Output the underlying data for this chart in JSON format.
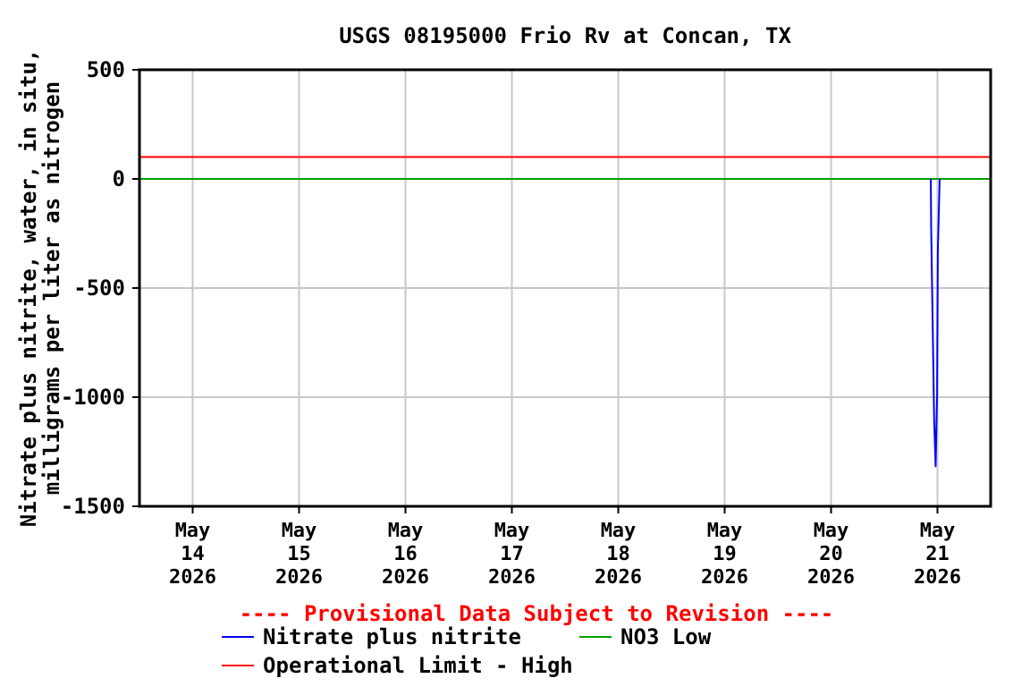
{
  "chart_data": {
    "type": "line",
    "title": "USGS 08195000 Frio Rv at Concan, TX",
    "ylabel": "Nitrate plus nitrite, water, in situ,\nmilligrams per liter as nitrogen",
    "xlim": [
      "2026-05-13T12:00",
      "2026-05-21T12:00"
    ],
    "xticks": [
      {
        "value": "2026-05-14",
        "label": "May\n14\n2026"
      },
      {
        "value": "2026-05-15",
        "label": "May\n15\n2026"
      },
      {
        "value": "2026-05-16",
        "label": "May\n16\n2026"
      },
      {
        "value": "2026-05-17",
        "label": "May\n17\n2026"
      },
      {
        "value": "2026-05-18",
        "label": "May\n18\n2026"
      },
      {
        "value": "2026-05-19",
        "label": "May\n19\n2026"
      },
      {
        "value": "2026-05-20",
        "label": "May\n20\n2026"
      },
      {
        "value": "2026-05-21",
        "label": "May\n21\n2026"
      }
    ],
    "ylim": [
      -1500,
      500
    ],
    "yticks": [
      -1500,
      -1000,
      -500,
      0,
      500
    ],
    "grid": true,
    "legend": "bottom",
    "series": [
      {
        "name": "Nitrate plus nitrite",
        "color": "#0000ff",
        "x": [
          "2026-05-20T22:30",
          "2026-05-20T22:35",
          "2026-05-20T22:55",
          "2026-05-20T23:15",
          "2026-05-20T23:35",
          "2026-05-20T23:55",
          "2026-05-21T00:05",
          "2026-05-21T00:30"
        ],
        "values": [
          0,
          -225,
          -660,
          -1100,
          -1317,
          -990,
          -330,
          0
        ]
      }
    ],
    "ref_lines": [
      {
        "axis": "y",
        "value": 0,
        "label": "NO3 Low",
        "color": "#00a000"
      },
      {
        "axis": "y",
        "value": 100,
        "label": "Operational Limit - High",
        "color": "#ff0000"
      }
    ],
    "annotations": [
      "---- Provisional Data Subject to Revision ----"
    ]
  }
}
